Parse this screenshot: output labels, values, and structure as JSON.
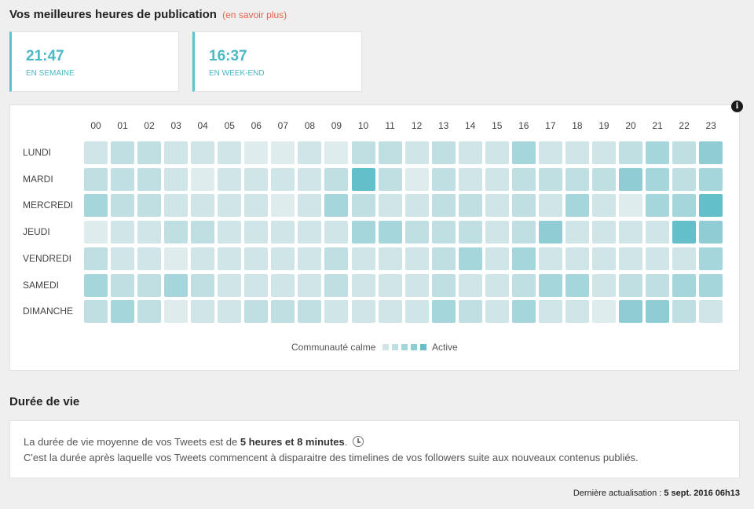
{
  "header": {
    "title": "Vos meilleures heures de publication",
    "learn_more": "(en savoir plus)"
  },
  "best_times": [
    {
      "time": "21:47",
      "label": "EN SEMAINE"
    },
    {
      "time": "16:37",
      "label": "EN WEEK-END"
    }
  ],
  "heatmap": {
    "info_icon": "i",
    "hours": [
      "00",
      "01",
      "02",
      "03",
      "04",
      "05",
      "06",
      "07",
      "08",
      "09",
      "10",
      "11",
      "12",
      "13",
      "14",
      "15",
      "16",
      "17",
      "18",
      "19",
      "20",
      "21",
      "22",
      "23"
    ],
    "days": [
      "LUNDI",
      "MARDI",
      "MERCREDI",
      "JEUDI",
      "VENDREDI",
      "SAMEDI",
      "DIMANCHE"
    ],
    "levels": [
      [
        1,
        2,
        2,
        1,
        1,
        1,
        0,
        0,
        1,
        0,
        2,
        2,
        1,
        2,
        1,
        1,
        3,
        1,
        1,
        1,
        2,
        3,
        2,
        4
      ],
      [
        2,
        2,
        2,
        1,
        0,
        1,
        1,
        1,
        1,
        2,
        5,
        2,
        0,
        2,
        1,
        1,
        2,
        2,
        2,
        2,
        4,
        3,
        2,
        3
      ],
      [
        3,
        2,
        2,
        1,
        1,
        1,
        1,
        0,
        1,
        3,
        2,
        1,
        1,
        2,
        2,
        1,
        2,
        1,
        3,
        1,
        0,
        3,
        3,
        5
      ],
      [
        0,
        1,
        1,
        2,
        2,
        1,
        1,
        1,
        1,
        1,
        3,
        3,
        2,
        2,
        2,
        1,
        2,
        4,
        1,
        1,
        1,
        1,
        5,
        4
      ],
      [
        2,
        1,
        1,
        0,
        1,
        1,
        1,
        1,
        1,
        2,
        1,
        1,
        1,
        2,
        3,
        1,
        3,
        1,
        1,
        1,
        1,
        1,
        1,
        3
      ],
      [
        3,
        2,
        2,
        3,
        2,
        1,
        1,
        1,
        1,
        2,
        1,
        1,
        1,
        2,
        1,
        1,
        2,
        3,
        3,
        1,
        2,
        2,
        3,
        3
      ],
      [
        2,
        3,
        2,
        0,
        1,
        1,
        2,
        2,
        2,
        1,
        1,
        1,
        1,
        3,
        2,
        1,
        3,
        1,
        1,
        0,
        4,
        4,
        2,
        1
      ]
    ],
    "colors": [
      "#dfeced",
      "#cfe5e8",
      "#bfdfe3",
      "#a5d6dc",
      "#8fccd4",
      "#63c0cb"
    ],
    "legend_low": "Communauté calme",
    "legend_high": "Active"
  },
  "lifespan": {
    "title": "Durée de vie",
    "line1_prefix": "La durée de vie moyenne de vos Tweets est de ",
    "line1_value": "5 heures et 8 minutes",
    "line1_suffix": ".",
    "line2": "C'est la durée après laquelle vos Tweets commencent à disparaitre des timelines de vos followers suite aux nouveaux contenus publiés.",
    "clock_icon": "clock-icon"
  },
  "footer": {
    "label": "Dernière actualisation : ",
    "date": "5 sept. 2016 06h13"
  }
}
